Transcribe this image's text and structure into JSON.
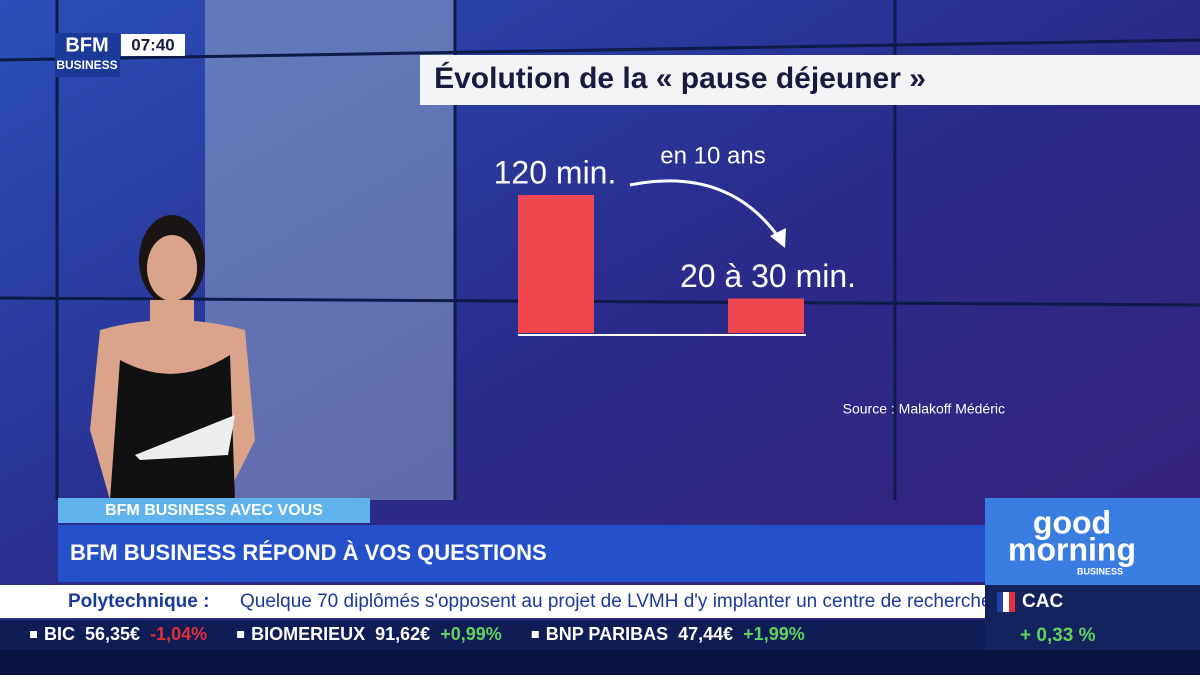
{
  "logo": {
    "brand": "BFM",
    "sub": "BUSINESS",
    "time": "07:40"
  },
  "chart_data": {
    "type": "bar",
    "title": "Évolution de la « pause déjeuner »",
    "categories": [
      null,
      null
    ],
    "values": [
      120,
      30
    ],
    "value_labels": [
      "120 min.",
      "20 à 30 min."
    ],
    "color": "#f0464f",
    "annotation": "en 10 ans",
    "source": "Source : Malakoff Médéric"
  },
  "banner": {
    "tag": "BFM BUSINESS AVEC VOUS",
    "headline": "BFM BUSINESS RÉPOND À VOS QUESTIONS"
  },
  "show": {
    "line1": "good",
    "line2": "morning",
    "sub": "BUSINESS"
  },
  "news": {
    "topic": "Polytechnique :",
    "text": "Quelque 70 diplômés s'opposent au projet de LVMH d'y implanter un centre de recherche."
  },
  "index": {
    "name": "CAC",
    "change": "+ 0,33 %"
  },
  "ticker": [
    {
      "name": "BIC",
      "price": "56,35€",
      "change": "-1,04%"
    },
    {
      "name": "BIOMERIEUX",
      "price": "91,62€",
      "change": "+0,99%"
    },
    {
      "name": "BNP PARIBAS",
      "price": "47,44€",
      "change": "+1,99%"
    }
  ]
}
